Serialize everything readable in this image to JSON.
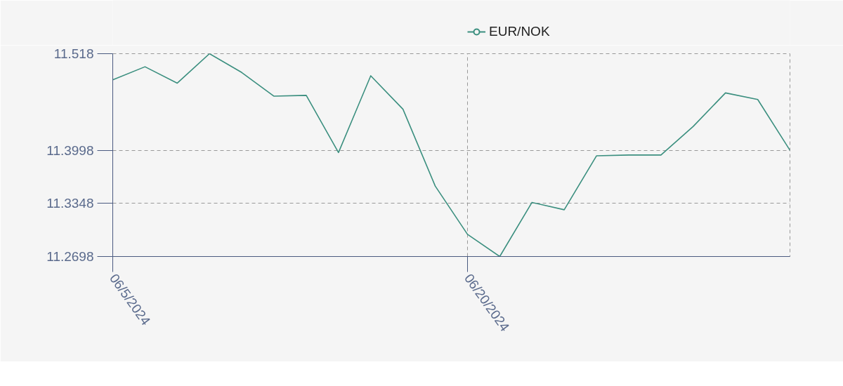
{
  "chart_data": {
    "type": "line",
    "categories": [
      "06/5/2024",
      null,
      null,
      null,
      null,
      null,
      null,
      null,
      null,
      null,
      null,
      "06/20/2024",
      null,
      null,
      null,
      null,
      null,
      null,
      null,
      null,
      null,
      null
    ],
    "series": [
      {
        "name": "EUR/NOK",
        "color": "#3b8f7f",
        "values": [
          11.486,
          11.502,
          11.482,
          11.518,
          11.495,
          11.466,
          11.467,
          11.397,
          11.491,
          11.45,
          11.356,
          11.297,
          11.2698,
          11.336,
          11.327,
          11.393,
          11.394,
          11.394,
          11.429,
          11.47,
          11.462,
          11.3998
        ]
      }
    ],
    "ylim": [
      11.2698,
      11.518
    ],
    "yticks": [
      11.2698,
      11.3348,
      11.3998,
      11.518
    ],
    "grid": true,
    "legend": "top"
  }
}
